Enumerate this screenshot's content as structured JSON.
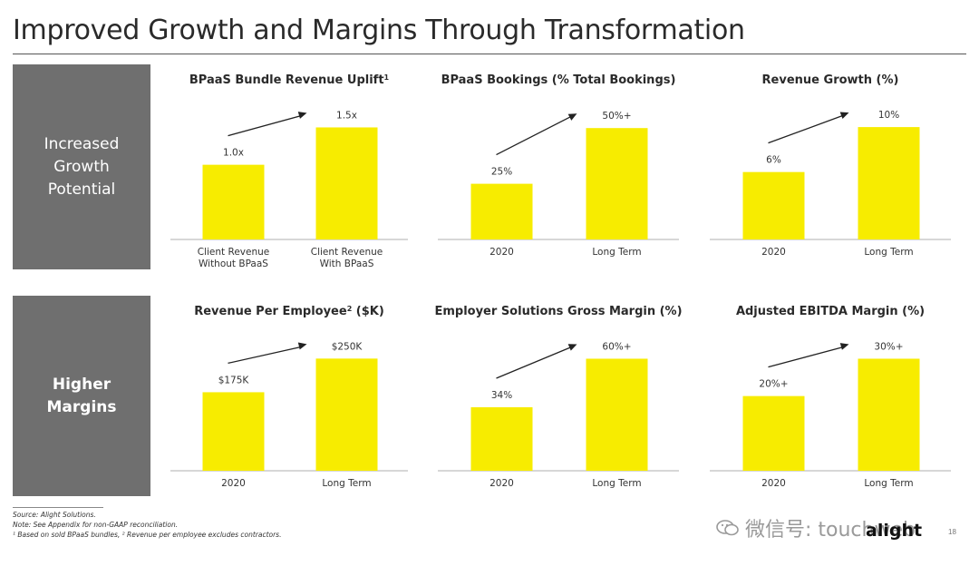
{
  "title": "Improved Growth and Margins Through Transformation",
  "rows": [
    {
      "label": "Increased\nGrowth\nPotential",
      "bold": false
    },
    {
      "label": "Higher\nMargins",
      "bold": true
    }
  ],
  "colors": {
    "bar": "#f7ec00",
    "panel": "#6f6f6f",
    "arrow": "#222222"
  },
  "chart_data": [
    {
      "type": "bar",
      "title": "BPaaS Bundle Revenue Uplift",
      "title_sup": "1",
      "categories": [
        [
          "Client Revenue",
          "Without BPaaS"
        ],
        [
          "Client Revenue",
          "With BPaaS"
        ]
      ],
      "values": [
        1.0,
        1.5
      ],
      "labels": [
        "1.0x",
        "1.5x"
      ],
      "ylim": [
        0,
        1.7
      ]
    },
    {
      "type": "bar",
      "title": "BPaaS Bookings (% Total Bookings)",
      "title_sup": "",
      "categories": [
        [
          "2020"
        ],
        [
          "Long Term"
        ]
      ],
      "values": [
        25,
        50
      ],
      "labels": [
        "25%",
        "50%+"
      ],
      "ylim": [
        0,
        57
      ]
    },
    {
      "type": "bar",
      "title": "Revenue Growth (%)",
      "title_sup": "",
      "categories": [
        [
          "2020"
        ],
        [
          "Long Term"
        ]
      ],
      "values": [
        6,
        10
      ],
      "labels": [
        "6%",
        "10%"
      ],
      "ylim": [
        0,
        11.3
      ]
    },
    {
      "type": "bar",
      "title": "Revenue Per Employee",
      "title_sup": "2",
      "title_suffix": " ($K)",
      "categories": [
        [
          "2020"
        ],
        [
          "Long Term"
        ]
      ],
      "values": [
        175,
        250
      ],
      "labels": [
        "$175K",
        "$250K"
      ],
      "ylim": [
        0,
        283
      ]
    },
    {
      "type": "bar",
      "title": "Employer Solutions Gross Margin (%)",
      "title_sup": "",
      "categories": [
        [
          "2020"
        ],
        [
          "Long Term"
        ]
      ],
      "values": [
        34,
        60
      ],
      "labels": [
        "34%",
        "60%+"
      ],
      "ylim": [
        0,
        68
      ]
    },
    {
      "type": "bar",
      "title": "Adjusted EBITDA Margin (%)",
      "title_sup": "",
      "categories": [
        [
          "2020"
        ],
        [
          "Long Term"
        ]
      ],
      "values": [
        20,
        30
      ],
      "labels": [
        "20%+",
        "30%+"
      ],
      "ylim": [
        0,
        34
      ]
    }
  ],
  "footnotes": [
    "Source: Alight Solutions.",
    "Note: See Appendix for non-GAAP reconciliation.",
    "¹ Based on sold BPaaS bundles, ² Revenue per employee excludes contractors."
  ],
  "watermark": "微信号: touchweb",
  "logo": "alight",
  "page_number": "18"
}
